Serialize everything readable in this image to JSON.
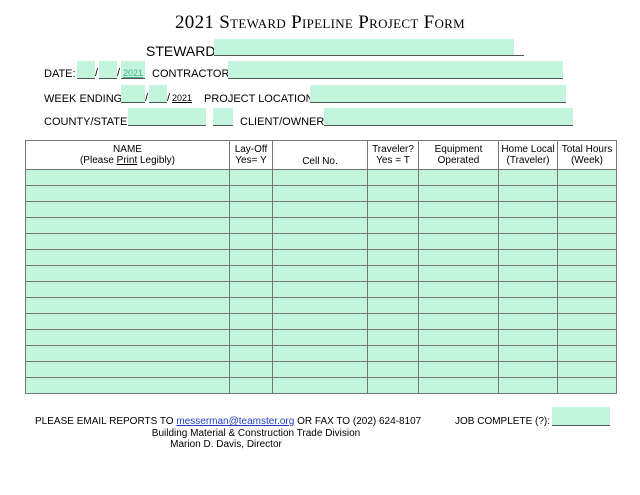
{
  "title": "2021 Steward Pipeline Project Form",
  "header": {
    "steward_label": "STEWARD",
    "date_label": "DATE:",
    "date_year": "2021",
    "contractor_label": "CONTRACTOR:",
    "week_ending_label": "WEEK ENDING:",
    "week_year": "2021",
    "project_location_label": "PROJECT LOCATION:",
    "county_state_label": "COUNTY/STATE:",
    "client_owner_label": "CLIENT/OWNER:",
    "slash": "/"
  },
  "table": {
    "columns": [
      {
        "line1": "NAME",
        "line2_pre": "(Please ",
        "line2_em": "Print",
        "line2_post": " Legibly)"
      },
      {
        "line1": "Lay-Off",
        "line2": "Yes= Y"
      },
      {
        "line1": "Cell No.",
        "line2": ""
      },
      {
        "line1": "Traveler?",
        "line2": "Yes = T"
      },
      {
        "line1": "Equipment",
        "line2": "Operated"
      },
      {
        "line1": "Home Local",
        "line2": "(Traveler)"
      },
      {
        "line1": "Total Hours",
        "line2": "(Week)"
      }
    ],
    "row_count": 14
  },
  "footer": {
    "email_prefix": "PLEASE EMAIL REPORTS TO ",
    "email": "messerman@teamster.org",
    "fax": " OR FAX TO (202) 624-8107",
    "division": "Building Material & Construction Trade Division",
    "director": "Marion D. Davis, Director",
    "job_complete_label": "JOB COMPLETE (?):"
  }
}
